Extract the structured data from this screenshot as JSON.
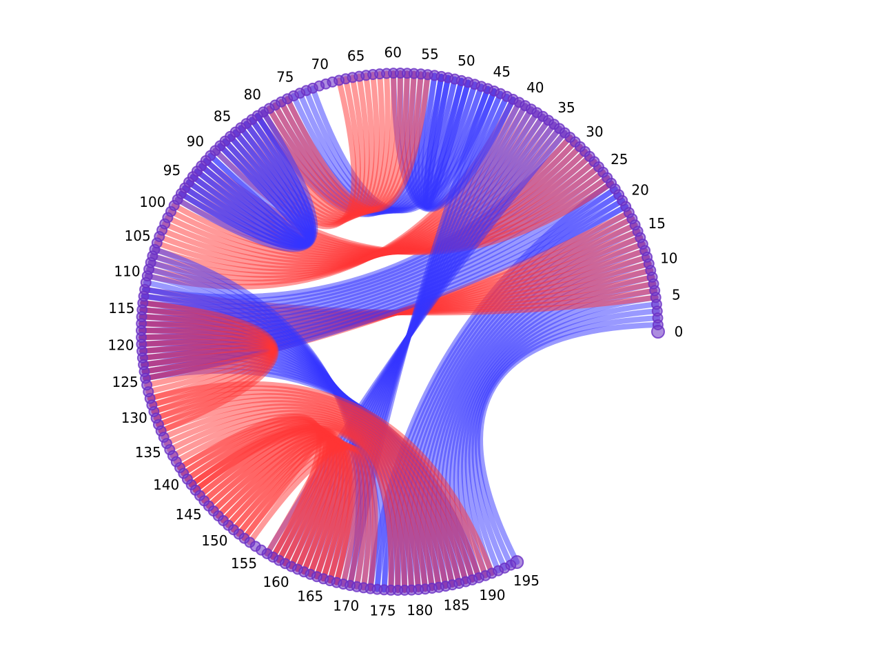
{
  "chart_data": {
    "type": "chord",
    "node_count": 196,
    "angle_start_deg": 0,
    "angle_end_deg": 297,
    "tick_step": 5,
    "tick_labels": [
      "0",
      "5",
      "10",
      "15",
      "20",
      "25",
      "30",
      "35",
      "40",
      "45",
      "50",
      "55",
      "60",
      "65",
      "70",
      "75",
      "80",
      "85",
      "90",
      "95",
      "100",
      "105",
      "110",
      "115",
      "120",
      "125",
      "130",
      "135",
      "140",
      "145",
      "150",
      "155",
      "160",
      "165",
      "170",
      "175",
      "180",
      "185",
      "190",
      "195"
    ],
    "colors": {
      "blue": "#3333ff",
      "red": "#ff3333",
      "node": "#6a2fc4"
    },
    "edges": [
      {
        "i": 0,
        "j": 196,
        "n": 24,
        "step": -1,
        "color": "blue",
        "lead": 4
      },
      {
        "i": 5,
        "j": 112,
        "n": 14,
        "step": 1,
        "color": "red",
        "lead": 10
      },
      {
        "i": 19,
        "j": 125,
        "n": 14,
        "step": -1,
        "color": "blue",
        "lead": 3
      },
      {
        "i": 23,
        "j": 91,
        "n": 20,
        "step": 1,
        "color": "red",
        "lead": 14
      },
      {
        "i": 33,
        "j": 157,
        "n": 14,
        "step": 1,
        "color": "blue",
        "lead": 5
      },
      {
        "i": 42,
        "j": 60,
        "n": 12,
        "step": -1,
        "color": "blue",
        "lead": 4
      },
      {
        "i": 45,
        "j": 72,
        "n": 10,
        "step": 1,
        "color": "blue",
        "lead": 3
      },
      {
        "i": 55,
        "j": 76,
        "n": 14,
        "step": 1,
        "color": "red",
        "lead": 10
      },
      {
        "i": 80,
        "j": 98,
        "n": 18,
        "step": -1,
        "color": "blue",
        "lead": 3
      },
      {
        "i": 106,
        "j": 170,
        "n": 20,
        "step": 1,
        "color": "blue",
        "lead": 7
      },
      {
        "i": 114,
        "j": 133,
        "n": 10,
        "step": -1,
        "color": "red",
        "lead": 4
      },
      {
        "i": 128,
        "j": 191,
        "n": 16,
        "step": -1,
        "color": "red",
        "lead": 10
      },
      {
        "i": 139,
        "j": 158,
        "n": 16,
        "step": 1,
        "color": "red",
        "lead": 6
      },
      {
        "i": 142,
        "j": 168,
        "n": 12,
        "step": -1,
        "color": "red",
        "lead": 6
      }
    ]
  }
}
